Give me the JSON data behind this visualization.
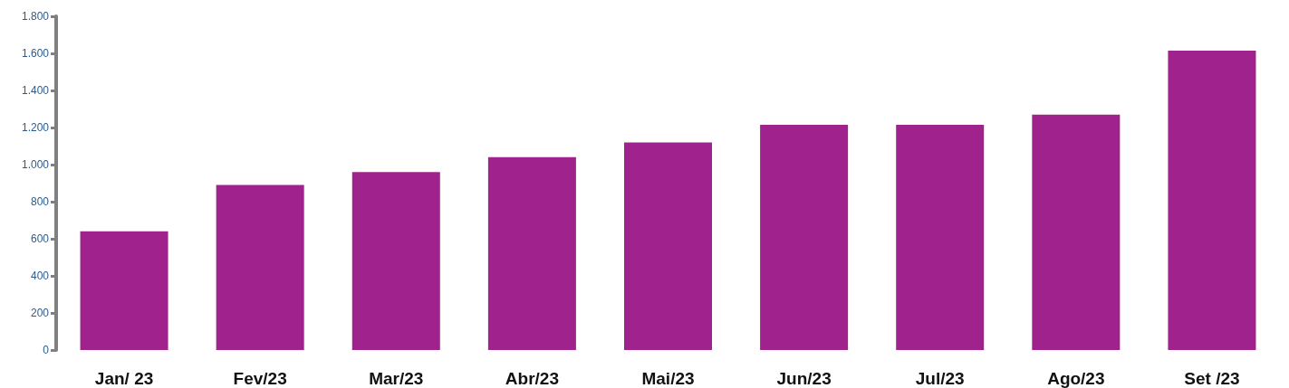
{
  "chart_data": {
    "type": "bar",
    "categories": [
      "Jan/ 23",
      "Fev/23",
      "Mar/23",
      "Abr/23",
      "Mai/23",
      "Jun/23",
      "Jul/23",
      "Ago/23",
      "Set /23"
    ],
    "values": [
      640,
      890,
      960,
      1040,
      1120,
      1215,
      1215,
      1270,
      1615
    ],
    "color": "#a0228c",
    "ylim": [
      0,
      1800
    ],
    "yticks": [
      0,
      200,
      400,
      600,
      800,
      {
        "value": 1000,
        "label": "1.000"
      },
      {
        "value": 1200,
        "label": "1.200"
      },
      {
        "value": 1400,
        "label": "1.400"
      },
      {
        "value": 1600,
        "label": "1.600"
      },
      {
        "value": 1800,
        "label": "1.800"
      }
    ],
    "grid": false
  }
}
